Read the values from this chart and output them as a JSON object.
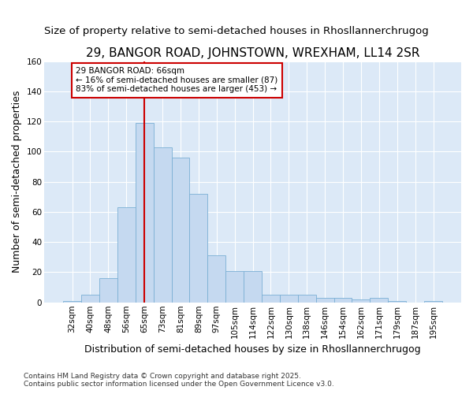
{
  "title": "29, BANGOR ROAD, JOHNSTOWN, WREXHAM, LL14 2SR",
  "subtitle": "Size of property relative to semi-detached houses in Rhosllannerchrugog",
  "xlabel": "Distribution of semi-detached houses by size in Rhosllannerchrugog",
  "ylabel": "Number of semi-detached properties",
  "categories": [
    "32sqm",
    "40sqm",
    "48sqm",
    "56sqm",
    "65sqm",
    "73sqm",
    "81sqm",
    "89sqm",
    "97sqm",
    "105sqm",
    "114sqm",
    "122sqm",
    "130sqm",
    "138sqm",
    "146sqm",
    "154sqm",
    "162sqm",
    "171sqm",
    "179sqm",
    "187sqm",
    "195sqm"
  ],
  "values": [
    1,
    5,
    16,
    63,
    119,
    103,
    96,
    72,
    31,
    21,
    21,
    5,
    5,
    5,
    3,
    3,
    2,
    3,
    1,
    0,
    1
  ],
  "bar_color": "#c5d9f0",
  "bar_edge_color": "#7bafd4",
  "highlight_bar_index": 4,
  "vline_color": "#cc0000",
  "annotation_title": "29 BANGOR ROAD: 66sqm",
  "annotation_line1": "← 16% of semi-detached houses are smaller (87)",
  "annotation_line2": "83% of semi-detached houses are larger (453) →",
  "annotation_box_color": "#cc0000",
  "ylim": [
    0,
    160
  ],
  "yticks": [
    0,
    20,
    40,
    60,
    80,
    100,
    120,
    140,
    160
  ],
  "bg_color": "#dce9f7",
  "footer": "Contains HM Land Registry data © Crown copyright and database right 2025.\nContains public sector information licensed under the Open Government Licence v3.0.",
  "title_fontsize": 11,
  "subtitle_fontsize": 9.5,
  "axis_label_fontsize": 9,
  "tick_fontsize": 7.5,
  "annotation_fontsize": 7.5,
  "footer_fontsize": 6.5
}
